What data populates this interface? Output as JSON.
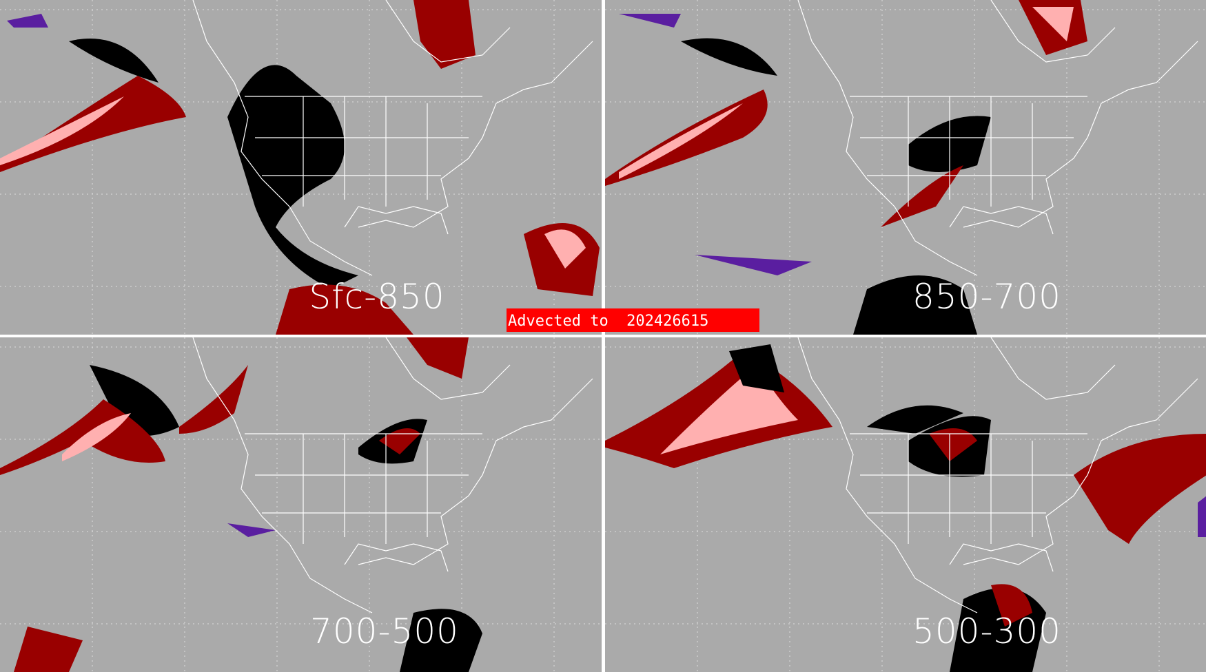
{
  "panels": [
    {
      "label": "Sfc-850"
    },
    {
      "label": "850-700"
    },
    {
      "label": "700-500"
    },
    {
      "label": "500-300"
    }
  ],
  "banner": {
    "text": "Advected to  202426615"
  },
  "colors": {
    "background": "#aaaaaa",
    "black": "#000000",
    "dark_red": "#990000",
    "pink": "#ffb0b0",
    "purple": "#5a1ea0",
    "red_banner": "#ff0000",
    "coastlines": "#ffffff"
  }
}
